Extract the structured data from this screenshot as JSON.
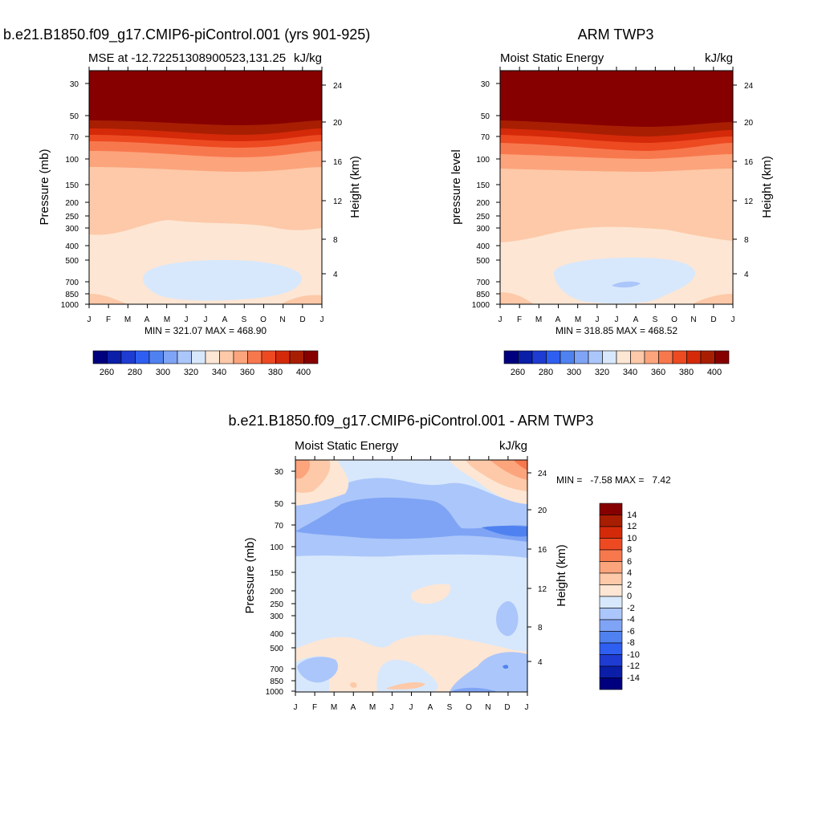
{
  "chart_data": [
    {
      "type": "heatmap",
      "title": "b.e21.B1850.f09_g17.CMIP6-piControl.001 (yrs 901-925)",
      "left_label": "MSE at -12.72251308900523,131.25",
      "right_label": "kJ/kg",
      "ylabel": "Pressure (mb)",
      "y2label": "Height (km)",
      "x_ticks": [
        "J",
        "F",
        "M",
        "A",
        "M",
        "J",
        "J",
        "A",
        "S",
        "O",
        "N",
        "D",
        "J"
      ],
      "y_ticks": [
        "30",
        "50",
        "70",
        "100",
        "150",
        "200",
        "250",
        "300",
        "400",
        "500",
        "700",
        "850",
        "1000"
      ],
      "y2_ticks": [
        "24",
        "20",
        "16",
        "12",
        "8",
        "4"
      ],
      "stats": "MIN = 321.07 MAX = 468.90",
      "min": 321.07,
      "max": 468.9,
      "colorbar_labels": [
        "260",
        "280",
        "300",
        "320",
        "340",
        "360",
        "380",
        "400"
      ]
    },
    {
      "type": "heatmap",
      "title": "ARM TWP3",
      "left_label": "Moist Static Energy",
      "right_label": "kJ/kg",
      "ylabel": "pressure level",
      "y2label": "Height (km)",
      "x_ticks": [
        "J",
        "F",
        "M",
        "A",
        "M",
        "J",
        "J",
        "A",
        "S",
        "O",
        "N",
        "D",
        "J"
      ],
      "y_ticks": [
        "30",
        "50",
        "70",
        "100",
        "150",
        "200",
        "250",
        "300",
        "400",
        "500",
        "700",
        "850",
        "1000"
      ],
      "y2_ticks": [
        "24",
        "20",
        "16",
        "12",
        "8",
        "4"
      ],
      "stats": "MIN = 318.85 MAX = 468.52",
      "min": 318.85,
      "max": 468.52,
      "colorbar_labels": [
        "260",
        "280",
        "300",
        "320",
        "340",
        "360",
        "380",
        "400"
      ]
    },
    {
      "type": "heatmap",
      "title": "b.e21.B1850.f09_g17.CMIP6-piControl.001 - ARM TWP3",
      "left_label": "Moist Static Energy",
      "right_label": "kJ/kg",
      "ylabel": "Pressure (mb)",
      "y2label": "Height (km)",
      "x_ticks": [
        "J",
        "F",
        "M",
        "A",
        "M",
        "J",
        "J",
        "A",
        "S",
        "O",
        "N",
        "D",
        "J"
      ],
      "y_ticks": [
        "30",
        "50",
        "70",
        "100",
        "150",
        "200",
        "250",
        "300",
        "400",
        "500",
        "700",
        "850",
        "1000"
      ],
      "y2_ticks": [
        "24",
        "20",
        "16",
        "12",
        "8",
        "4"
      ],
      "stats": "MIN =   -7.58 MAX =   7.42",
      "min": -7.58,
      "max": 7.42,
      "colorbar_labels": [
        "14",
        "12",
        "10",
        "8",
        "6",
        "4",
        "2",
        "0",
        "-2",
        "-4",
        "-6",
        "-8",
        "-10",
        "-12",
        "-14"
      ]
    }
  ],
  "colors": {
    "scale": [
      "#00007f",
      "#0a1ea8",
      "#1e3cd2",
      "#2f5ff0",
      "#4f82f0",
      "#7fa4f5",
      "#abc6fa",
      "#d8e8fc",
      "#fde6d4",
      "#fdc9a8",
      "#fca47c",
      "#f8784e",
      "#ed4a22",
      "#d42a0a",
      "#a81e02",
      "#860000"
    ],
    "diff_scale": [
      "#860000",
      "#a81e02",
      "#d42a0a",
      "#ed4a22",
      "#f8784e",
      "#fca47c",
      "#fdc9a8",
      "#fde6d4",
      "#d8e8fc",
      "#abc6fa",
      "#7fa4f5",
      "#4f82f0",
      "#2f5ff0",
      "#1e3cd2",
      "#0a1ea8",
      "#00007f"
    ]
  }
}
